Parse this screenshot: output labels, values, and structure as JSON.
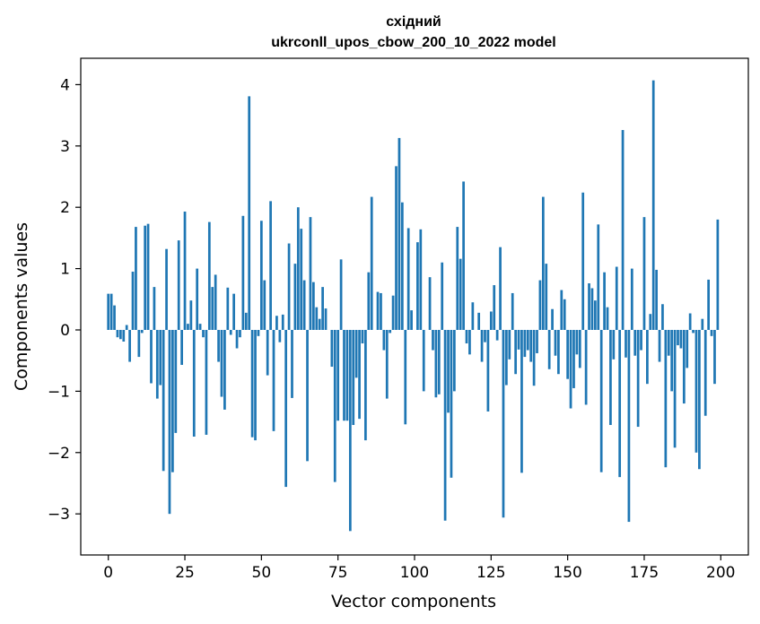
{
  "chart_data": {
    "type": "bar",
    "title_line1": "східний",
    "title_line2": "ukrconll_upos_cbow_200_10_2022 model",
    "xlabel": "Vector components",
    "ylabel": "Components values",
    "xlim": [
      -9,
      209
    ],
    "ylim": [
      -3.67,
      4.43
    ],
    "xticks": [
      0,
      25,
      50,
      75,
      100,
      125,
      150,
      175,
      200
    ],
    "yticks": [
      -3,
      -2,
      -1,
      0,
      1,
      2,
      3,
      4
    ],
    "ytick_labels": [
      "−3",
      "−2",
      "−1",
      "0",
      "1",
      "2",
      "3",
      "4"
    ],
    "grid": false,
    "legend": "none",
    "bar_color": "#1f77b4",
    "x": [
      0,
      1,
      2,
      3,
      4,
      5,
      6,
      7,
      8,
      9,
      10,
      11,
      12,
      13,
      14,
      15,
      16,
      17,
      18,
      19,
      20,
      21,
      22,
      23,
      24,
      25,
      26,
      27,
      28,
      29,
      30,
      31,
      32,
      33,
      34,
      35,
      36,
      37,
      38,
      39,
      40,
      41,
      42,
      43,
      44,
      45,
      46,
      47,
      48,
      49,
      50,
      51,
      52,
      53,
      54,
      55,
      56,
      57,
      58,
      59,
      60,
      61,
      62,
      63,
      64,
      65,
      66,
      67,
      68,
      69,
      70,
      71,
      72,
      73,
      74,
      75,
      76,
      77,
      78,
      79,
      80,
      81,
      82,
      83,
      84,
      85,
      86,
      87,
      88,
      89,
      90,
      91,
      92,
      93,
      94,
      95,
      96,
      97,
      98,
      99,
      100,
      101,
      102,
      103,
      104,
      105,
      106,
      107,
      108,
      109,
      110,
      111,
      112,
      113,
      114,
      115,
      116,
      117,
      118,
      119,
      120,
      121,
      122,
      123,
      124,
      125,
      126,
      127,
      128,
      129,
      130,
      131,
      132,
      133,
      134,
      135,
      136,
      137,
      138,
      139,
      140,
      141,
      142,
      143,
      144,
      145,
      146,
      147,
      148,
      149,
      150,
      151,
      152,
      153,
      154,
      155,
      156,
      157,
      158,
      159,
      160,
      161,
      162,
      163,
      164,
      165,
      166,
      167,
      168,
      169,
      170,
      171,
      172,
      173,
      174,
      175,
      176,
      177,
      178,
      179,
      180,
      181,
      182,
      183,
      184,
      185,
      186,
      187,
      188,
      189,
      190,
      191,
      192,
      193,
      194,
      195,
      196,
      197,
      198,
      199
    ],
    "values": [
      0.59,
      0.59,
      0.4,
      -0.12,
      -0.15,
      -0.19,
      0.08,
      -0.52,
      0.95,
      1.68,
      -0.44,
      -0.05,
      1.7,
      1.73,
      -0.87,
      0.7,
      -1.12,
      -0.9,
      -2.3,
      1.32,
      -3.0,
      -2.32,
      -1.68,
      1.46,
      -0.57,
      1.93,
      0.1,
      0.48,
      -1.74,
      1.0,
      0.1,
      -0.12,
      -1.71,
      1.76,
      0.7,
      0.9,
      -0.52,
      -1.09,
      -1.3,
      0.69,
      -0.08,
      0.59,
      -0.3,
      -0.12,
      1.86,
      0.28,
      3.81,
      -1.75,
      -1.8,
      -0.1,
      1.78,
      0.81,
      -0.74,
      2.1,
      -1.65,
      0.23,
      -0.2,
      0.25,
      -2.56,
      1.41,
      -1.11,
      1.08,
      2.0,
      1.65,
      0.81,
      -2.14,
      1.84,
      0.78,
      0.37,
      0.18,
      0.7,
      0.35,
      0.0,
      -0.6,
      -2.48,
      -1.48,
      1.15,
      -1.48,
      -1.48,
      -3.28,
      -1.55,
      -0.78,
      -1.45,
      -0.22,
      -1.8,
      0.94,
      2.17,
      0.0,
      0.62,
      0.6,
      -0.33,
      -1.12,
      -0.05,
      0.56,
      2.67,
      3.13,
      2.08,
      -1.54,
      1.66,
      0.32,
      0.0,
      1.43,
      1.64,
      -1.0,
      0.0,
      0.86,
      -0.33,
      -1.1,
      -1.05,
      1.1,
      -3.11,
      -1.35,
      -2.41,
      -1.0,
      1.68,
      1.16,
      2.42,
      -0.22,
      -0.4,
      0.45,
      0.0,
      0.28,
      -0.52,
      -0.2,
      -1.33,
      0.3,
      0.73,
      -0.17,
      1.35,
      -3.06,
      -0.9,
      -0.48,
      0.6,
      -0.72,
      -0.32,
      -2.33,
      -0.44,
      -0.33,
      -0.52,
      -0.91,
      -0.38,
      0.81,
      2.17,
      1.08,
      -0.64,
      0.34,
      -0.42,
      -0.72,
      0.65,
      0.5,
      -0.8,
      -1.28,
      -0.95,
      -0.4,
      -0.62,
      2.24,
      -1.22,
      0.76,
      0.68,
      0.48,
      1.72,
      -2.32,
      0.94,
      0.37,
      -1.55,
      -0.48,
      1.03,
      -2.4,
      3.26,
      -0.45,
      -3.13,
      1.0,
      -0.42,
      -1.58,
      -0.33,
      1.84,
      -0.88,
      0.26,
      4.07,
      0.98,
      -0.52,
      0.42,
      -2.24,
      -0.42,
      -1.0,
      -1.92,
      -0.25,
      -0.3,
      -1.2,
      -0.62,
      0.27,
      -0.05,
      -2.0,
      -2.27,
      0.18,
      -1.4,
      0.82,
      -0.1,
      -0.88,
      1.8
    ]
  }
}
